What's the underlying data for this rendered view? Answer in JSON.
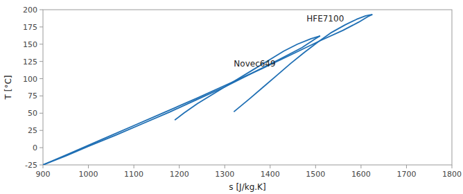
{
  "chart_data": {
    "type": "line",
    "title": "",
    "xlabel": "s [J/kg.K]",
    "ylabel": "T [°C]",
    "xlim": [
      900,
      1800
    ],
    "ylim": [
      -25,
      200
    ],
    "xticks": [
      900,
      1000,
      1100,
      1200,
      1300,
      1400,
      1500,
      1600,
      1700,
      1800
    ],
    "yticks": [
      -25,
      0,
      25,
      50,
      75,
      100,
      125,
      150,
      175,
      200
    ],
    "grid": false,
    "series": [
      {
        "x": [
          900,
          950,
          1000,
          1060,
          1120,
          1180,
          1240,
          1300,
          1360,
          1420,
          1470,
          1500,
          1510
        ],
        "values": [
          -25,
          -12,
          2,
          18,
          35,
          52,
          70,
          88,
          108,
          128,
          145,
          158,
          162
        ]
      },
      {
        "x": [
          1510,
          1490,
          1460,
          1430,
          1400,
          1360,
          1320,
          1280,
          1240,
          1210,
          1190
        ],
        "values": [
          162,
          158,
          150,
          140,
          128,
          112,
          96,
          80,
          64,
          50,
          40
        ]
      },
      {
        "x": [
          900,
          960,
          1030,
          1100,
          1170,
          1240,
          1310,
          1380,
          1450,
          1510,
          1560,
          1595,
          1615,
          1625
        ],
        "values": [
          -25,
          -8,
          12,
          32,
          52,
          72,
          93,
          114,
          136,
          155,
          170,
          182,
          190,
          193
        ]
      },
      {
        "x": [
          1625,
          1610,
          1590,
          1565,
          1535,
          1505,
          1475,
          1445,
          1415,
          1385,
          1355,
          1320
        ],
        "values": [
          193,
          191,
          186,
          178,
          167,
          153,
          138,
          122,
          105,
          88,
          71,
          52
        ]
      }
    ],
    "annotations": [
      {
        "text": "Novec649",
        "x": 1320,
        "y": 118
      },
      {
        "text": "HFE7100",
        "x": 1480,
        "y": 183
      }
    ]
  }
}
